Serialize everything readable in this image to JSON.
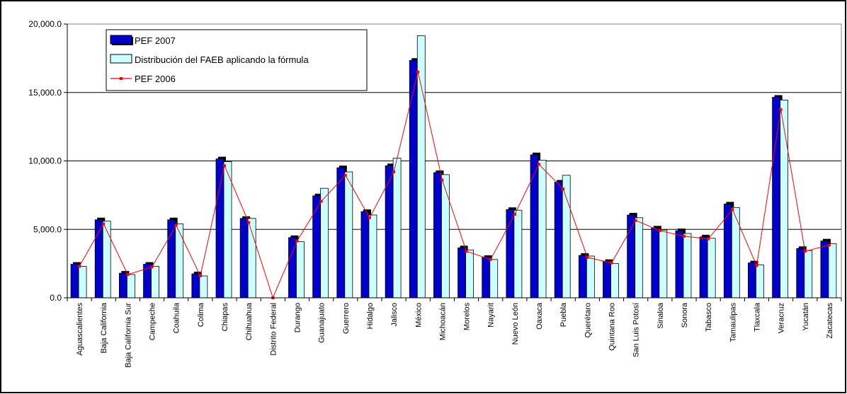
{
  "chart_data": {
    "type": "bar",
    "categories": [
      "Aguascalientes",
      "Baja California",
      "Baja California Sur",
      "Campeche",
      "Coahuila",
      "Colima",
      "Chiapas",
      "Chihuahua",
      "Distrito Federal",
      "Durango",
      "Guanajuato",
      "Guerrero",
      "Hidalgo",
      "Jalisco",
      "México",
      "Michoacán",
      "Morelos",
      "Nayarit",
      "Nuevo León",
      "Oaxaca",
      "Puebla",
      "Querétaro",
      "Quintana Roo",
      "San Luis Potosí",
      "Sinaloa",
      "Sonora",
      "Tabasco",
      "Tamaulipas",
      "Tlaxcala",
      "Veracruz",
      "Yucatán",
      "Zacatecas"
    ],
    "series": [
      {
        "name": "PEF 2007",
        "kind": "bar",
        "color": "#0000CC",
        "values": [
          2450,
          5700,
          1800,
          2450,
          5700,
          1750,
          10150,
          5800,
          0,
          4400,
          7450,
          9500,
          6300,
          9650,
          17350,
          9150,
          3650,
          2950,
          6450,
          10450,
          8450,
          3100,
          2650,
          6050,
          5100,
          4900,
          4450,
          6850,
          2550,
          14650,
          3600,
          4150
        ]
      },
      {
        "name": "Distribución del FAEB aplicando la fórmula",
        "kind": "bar",
        "color": "#CCFFFF",
        "values": [
          2300,
          5600,
          1700,
          2300,
          5400,
          1600,
          9950,
          5800,
          0,
          4100,
          8000,
          9200,
          6050,
          10200,
          19150,
          9000,
          3500,
          2800,
          6400,
          10050,
          8950,
          3050,
          2500,
          5850,
          4950,
          4700,
          4350,
          6600,
          2400,
          14450,
          3450,
          3950
        ]
      },
      {
        "name": "PEF 2006",
        "kind": "line",
        "color": "#FF0000",
        "values": [
          2300,
          5400,
          1700,
          2250,
          5300,
          1600,
          9650,
          5500,
          0,
          4150,
          7050,
          8950,
          5850,
          9200,
          16500,
          8600,
          3400,
          2800,
          6100,
          9750,
          7950,
          2950,
          2550,
          5650,
          4900,
          4500,
          4300,
          6450,
          2350,
          13750,
          3400,
          3850
        ]
      }
    ],
    "ylim": [
      0,
      20000
    ],
    "yticks": [
      "0.0",
      "5,000.0",
      "10,000.0",
      "15,000.0",
      "20,000.0"
    ],
    "grid": true,
    "legend_position": "top-left"
  }
}
